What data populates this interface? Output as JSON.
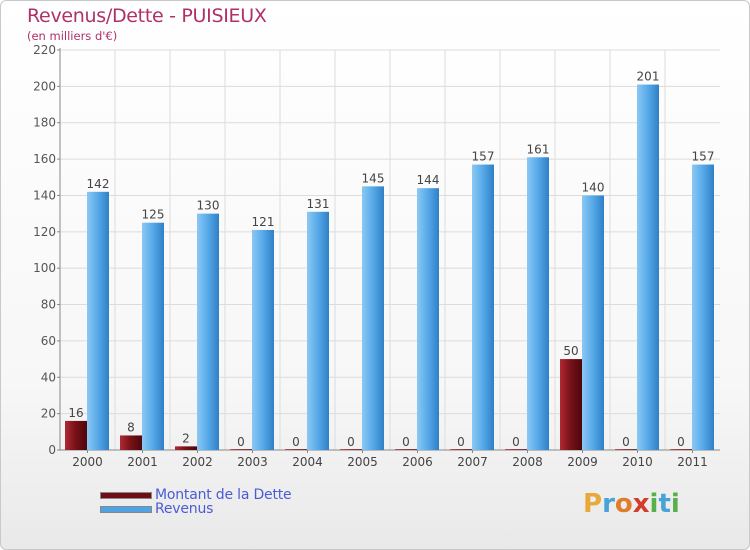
{
  "title": "Revenus/Dette - PUISIEUX",
  "subtitle": "(en milliers d'€)",
  "logo": {
    "letters": [
      "P",
      "r",
      "o",
      "x",
      "i",
      "t",
      "i"
    ],
    "colors": [
      "#e8a93a",
      "#4aa3d8",
      "#e07c2c",
      "#d43c2a",
      "#57b04a",
      "#4aa3d8",
      "#57b04a"
    ]
  },
  "legend": [
    {
      "label": "Montant de la Dette",
      "color": "#6e0e14"
    },
    {
      "label": "Revenus",
      "color": "#4ea3e4"
    }
  ],
  "chart_data": {
    "type": "bar",
    "categories": [
      "2000",
      "2001",
      "2002",
      "2003",
      "2004",
      "2005",
      "2006",
      "2007",
      "2008",
      "2009",
      "2010",
      "2011"
    ],
    "series": [
      {
        "name": "Montant de la Dette",
        "color": "#6e0e14",
        "values": [
          16,
          8,
          2,
          0,
          0,
          0,
          0,
          0,
          0,
          50,
          0,
          0
        ]
      },
      {
        "name": "Revenus",
        "color": "#4ea3e4",
        "values": [
          142,
          125,
          130,
          121,
          131,
          145,
          144,
          157,
          161,
          140,
          201,
          157
        ]
      }
    ],
    "yticks": [
      0,
      20,
      40,
      60,
      80,
      100,
      120,
      140,
      160,
      180,
      200,
      220
    ],
    "ylim": [
      0,
      220
    ],
    "grid": true
  }
}
